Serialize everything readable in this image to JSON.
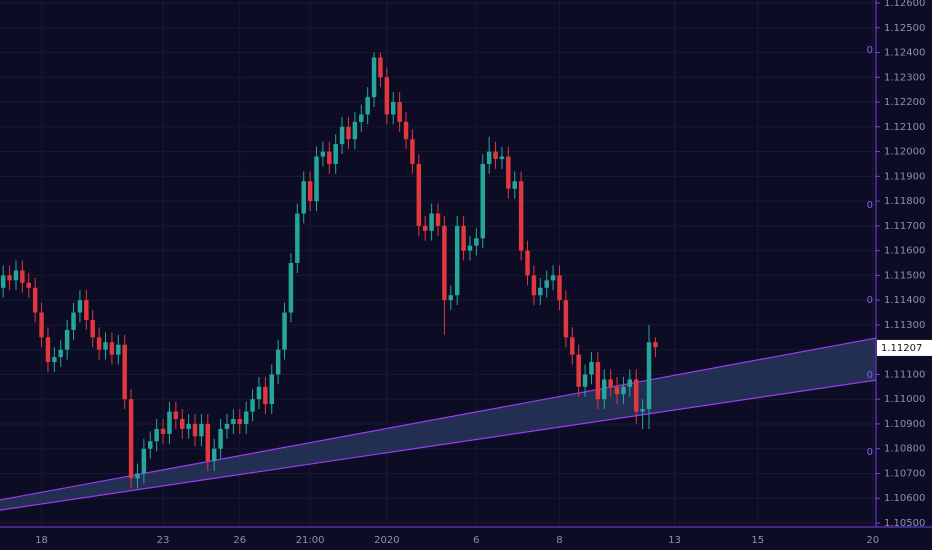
{
  "chart_data": {
    "type": "candlestick",
    "categories": [
      null,
      null,
      null,
      null,
      null,
      null,
      "18",
      null,
      null,
      null,
      null,
      null,
      null,
      null,
      null,
      null,
      null,
      null,
      null,
      null,
      null,
      null,
      null,
      null,
      null,
      "23",
      null,
      null,
      null,
      null,
      null,
      null,
      null,
      null,
      null,
      null,
      null,
      "26",
      null,
      null,
      null,
      null,
      null,
      null,
      null,
      null,
      null,
      null,
      "21:00",
      null,
      null,
      null,
      null,
      null,
      null,
      null,
      null,
      null,
      null,
      null,
      "2020",
      null,
      null,
      null,
      null,
      null,
      null,
      null,
      null,
      null,
      null,
      null,
      null,
      null,
      "6",
      null,
      null,
      null,
      null,
      null,
      null,
      null,
      null,
      null,
      null,
      null,
      null,
      "8",
      null,
      null,
      null,
      null,
      null,
      null,
      null,
      null,
      null,
      null,
      null,
      null,
      null,
      null,
      null,
      null,
      null,
      "13",
      null,
      null,
      null,
      null,
      null,
      null,
      null,
      null,
      null,
      null,
      null,
      null,
      "15",
      null,
      null,
      null,
      null,
      null,
      null,
      null,
      null,
      null,
      null,
      null,
      null,
      null,
      null,
      null,
      null,
      null,
      "20"
    ],
    "open": [
      1.1145,
      1.115,
      1.1148,
      1.1152,
      1.1147,
      1.1145,
      1.1135,
      1.1125,
      1.1115,
      1.1117,
      1.112,
      1.1128,
      1.1135,
      1.114,
      1.1132,
      1.1125,
      1.112,
      1.1123,
      1.1118,
      1.1122,
      1.11,
      1.1068,
      1.107,
      1.108,
      1.1083,
      1.1088,
      1.1086,
      1.1095,
      1.1092,
      1.1088,
      1.109,
      1.1085,
      1.109,
      1.1075,
      1.108,
      1.1088,
      1.109,
      1.1092,
      1.109,
      1.1095,
      1.11,
      1.1105,
      1.1098,
      1.111,
      1.112,
      1.1135,
      1.1155,
      1.1175,
      1.1188,
      1.118,
      1.1198,
      1.12,
      1.1195,
      1.1203,
      1.121,
      1.1205,
      1.1212,
      1.1215,
      1.1222,
      1.1238,
      1.123,
      1.1215,
      1.122,
      1.1212,
      1.1205,
      1.1195,
      1.117,
      1.1168,
      1.1175,
      1.117,
      1.114,
      1.1142,
      1.117,
      1.116,
      1.1162,
      1.1165,
      1.1195,
      1.12,
      1.1197,
      1.1198,
      1.1185,
      1.1188,
      1.116,
      1.115,
      1.1142,
      1.1145,
      1.1148,
      1.115,
      1.114,
      1.1125,
      1.1118,
      1.1105,
      1.111,
      1.1115,
      1.11,
      1.1108,
      1.1105,
      1.1102,
      1.1105,
      1.1108,
      1.1095,
      1.1096,
      1.1123,
      null,
      null,
      null,
      null,
      null,
      null,
      null,
      null,
      null,
      null,
      null,
      null,
      null,
      null,
      null,
      null,
      null,
      null,
      null,
      null,
      null,
      null,
      null,
      null,
      null,
      null,
      null,
      null,
      null,
      null,
      null,
      null,
      null,
      null
    ],
    "high": [
      1.1154,
      1.1154,
      1.1156,
      1.1156,
      1.1151,
      1.1149,
      1.1139,
      1.1129,
      1.1121,
      1.1124,
      1.1132,
      1.1139,
      1.1144,
      1.1144,
      1.1136,
      1.1129,
      1.1127,
      1.1127,
      1.1126,
      1.1126,
      1.1104,
      1.1074,
      1.1084,
      1.1087,
      1.1092,
      1.1092,
      1.1099,
      1.1099,
      1.1096,
      1.1094,
      1.1094,
      1.1094,
      1.1094,
      1.1084,
      1.1092,
      1.1094,
      1.1096,
      1.1096,
      1.1099,
      1.1104,
      1.1109,
      1.1109,
      1.1114,
      1.1124,
      1.1139,
      1.1159,
      1.1179,
      1.1192,
      1.1192,
      1.1202,
      1.1204,
      1.1204,
      1.1207,
      1.1214,
      1.1214,
      1.1216,
      1.1219,
      1.1226,
      1.124,
      1.124,
      1.1234,
      1.1224,
      1.1224,
      1.1216,
      1.1209,
      1.1199,
      1.1174,
      1.1179,
      1.1179,
      1.1174,
      1.1146,
      1.1174,
      1.1174,
      1.1166,
      1.1169,
      1.1199,
      1.1206,
      1.1204,
      1.1202,
      1.1202,
      1.1192,
      1.1192,
      1.1164,
      1.1154,
      1.1149,
      1.1152,
      1.1154,
      1.1154,
      1.1144,
      1.1129,
      1.1122,
      1.1114,
      1.1119,
      1.1119,
      1.1112,
      1.1112,
      1.1109,
      1.1109,
      1.1112,
      1.1112,
      1.11,
      1.113,
      1.1125,
      null,
      null,
      null,
      null,
      null,
      null,
      null,
      null,
      null,
      null,
      null,
      null,
      null,
      null,
      null,
      null,
      null,
      null,
      null,
      null,
      null,
      null,
      null,
      null,
      null,
      null,
      null,
      null,
      null,
      null,
      null,
      null,
      null,
      null
    ],
    "low": [
      1.1141,
      1.1144,
      1.1144,
      1.1143,
      1.1141,
      1.1131,
      1.1121,
      1.1111,
      1.1111,
      1.1113,
      1.1116,
      1.1124,
      1.1131,
      1.1128,
      1.1121,
      1.1116,
      1.1116,
      1.1114,
      1.1114,
      1.1096,
      1.1064,
      1.1064,
      1.1066,
      1.1076,
      1.1079,
      1.1082,
      1.1082,
      1.1088,
      1.1084,
      1.1084,
      1.1081,
      1.1081,
      1.1071,
      1.1071,
      1.1076,
      1.1084,
      1.1086,
      1.1086,
      1.1086,
      1.1091,
      1.1096,
      1.1094,
      1.1094,
      1.1106,
      1.1116,
      1.1131,
      1.1151,
      1.1171,
      1.1176,
      1.1176,
      1.1194,
      1.1191,
      1.1191,
      1.1199,
      1.1201,
      1.1201,
      1.1208,
      1.1211,
      1.1218,
      1.1226,
      1.1211,
      1.1211,
      1.1208,
      1.1201,
      1.1191,
      1.1166,
      1.1164,
      1.1164,
      1.1166,
      1.1126,
      1.1136,
      1.1138,
      1.1156,
      1.1156,
      1.1158,
      1.1161,
      1.1191,
      1.1193,
      1.1193,
      1.1181,
      1.1181,
      1.1156,
      1.1146,
      1.1138,
      1.1138,
      1.1141,
      1.1144,
      1.1136,
      1.1121,
      1.1114,
      1.1101,
      1.1101,
      1.1106,
      1.1096,
      1.1096,
      1.1101,
      1.1098,
      1.1098,
      1.1101,
      1.109,
      1.1088,
      1.1088,
      1.1117,
      null,
      null,
      null,
      null,
      null,
      null,
      null,
      null,
      null,
      null,
      null,
      null,
      null,
      null,
      null,
      null,
      null,
      null,
      null,
      null,
      null,
      null,
      null,
      null,
      null,
      null,
      null,
      null,
      null,
      null,
      null,
      null,
      null,
      null
    ],
    "close": [
      1.115,
      1.1148,
      1.1152,
      1.1147,
      1.1145,
      1.1135,
      1.1125,
      1.1115,
      1.1117,
      1.112,
      1.1128,
      1.1135,
      1.114,
      1.1132,
      1.1125,
      1.112,
      1.1123,
      1.1118,
      1.1122,
      1.11,
      1.1068,
      1.107,
      1.108,
      1.1083,
      1.1088,
      1.1086,
      1.1095,
      1.1092,
      1.1088,
      1.109,
      1.1085,
      1.109,
      1.1075,
      1.108,
      1.1088,
      1.109,
      1.1092,
      1.109,
      1.1095,
      1.11,
      1.1105,
      1.1098,
      1.111,
      1.112,
      1.1135,
      1.1155,
      1.1175,
      1.1188,
      1.118,
      1.1198,
      1.12,
      1.1195,
      1.1203,
      1.121,
      1.1205,
      1.1212,
      1.1215,
      1.1222,
      1.1238,
      1.123,
      1.1215,
      1.122,
      1.1212,
      1.1205,
      1.1195,
      1.117,
      1.1168,
      1.1175,
      1.117,
      1.114,
      1.1142,
      1.117,
      1.116,
      1.1162,
      1.1165,
      1.1195,
      1.12,
      1.1197,
      1.1198,
      1.1185,
      1.1188,
      1.116,
      1.115,
      1.1142,
      1.1145,
      1.1148,
      1.115,
      1.114,
      1.1125,
      1.1118,
      1.1105,
      1.111,
      1.1115,
      1.11,
      1.1108,
      1.1105,
      1.1102,
      1.1105,
      1.1108,
      1.1095,
      1.1096,
      1.1123,
      1.1121,
      null,
      null,
      null,
      null,
      null,
      null,
      null,
      null,
      null,
      null,
      null,
      null,
      null,
      null,
      null,
      null,
      null,
      null,
      null,
      null,
      null,
      null,
      null,
      null,
      null,
      null,
      null,
      null,
      null,
      null,
      null,
      null,
      null,
      null
    ],
    "up_color": "#26a69a",
    "down_color": "#e0383e",
    "ylim": [
      1.105,
      1.126
    ],
    "yticks": [
      {
        "value": 1.105,
        "label": "1.10500"
      },
      {
        "value": 1.106,
        "label": "1.10600"
      },
      {
        "value": 1.107,
        "label": "1.10700"
      },
      {
        "value": 1.108,
        "label": "1.10800"
      },
      {
        "value": 1.109,
        "label": "1.10900"
      },
      {
        "value": 1.11,
        "label": "1.11000"
      },
      {
        "value": 1.111,
        "label": "1.11100"
      },
      {
        "value": 1.112,
        "label": "1.11200"
      },
      {
        "value": 1.113,
        "label": "1.11300"
      },
      {
        "value": 1.114,
        "label": "1.11400"
      },
      {
        "value": 1.115,
        "label": "1.11500"
      },
      {
        "value": 1.116,
        "label": "1.11600"
      },
      {
        "value": 1.117,
        "label": "1.11700"
      },
      {
        "value": 1.118,
        "label": "1.11800"
      },
      {
        "value": 1.119,
        "label": "1.11900"
      },
      {
        "value": 1.12,
        "label": "1.12000"
      },
      {
        "value": 1.121,
        "label": "1.12100"
      },
      {
        "value": 1.122,
        "label": "1.12200"
      },
      {
        "value": 1.123,
        "label": "1.12300"
      },
      {
        "value": 1.124,
        "label": "1.12400"
      },
      {
        "value": 1.125,
        "label": "1.12500"
      },
      {
        "value": 1.126,
        "label": "1.12600"
      }
    ],
    "grid": true,
    "last_price": {
      "value": 1.11207,
      "label": "1.11207"
    },
    "zero_marks": [
      {
        "value": 1.1241,
        "label": "0"
      },
      {
        "value": 1.11784,
        "label": "0"
      },
      {
        "value": 1.114,
        "label": "0"
      },
      {
        "value": 1.11098,
        "label": "0"
      },
      {
        "value": 1.10787,
        "label": "0"
      }
    ],
    "channel": {
      "color": "#9b3cf0",
      "upper": [
        1.10593,
        1.11247
      ],
      "lower": [
        1.10552,
        1.11077
      ]
    }
  }
}
